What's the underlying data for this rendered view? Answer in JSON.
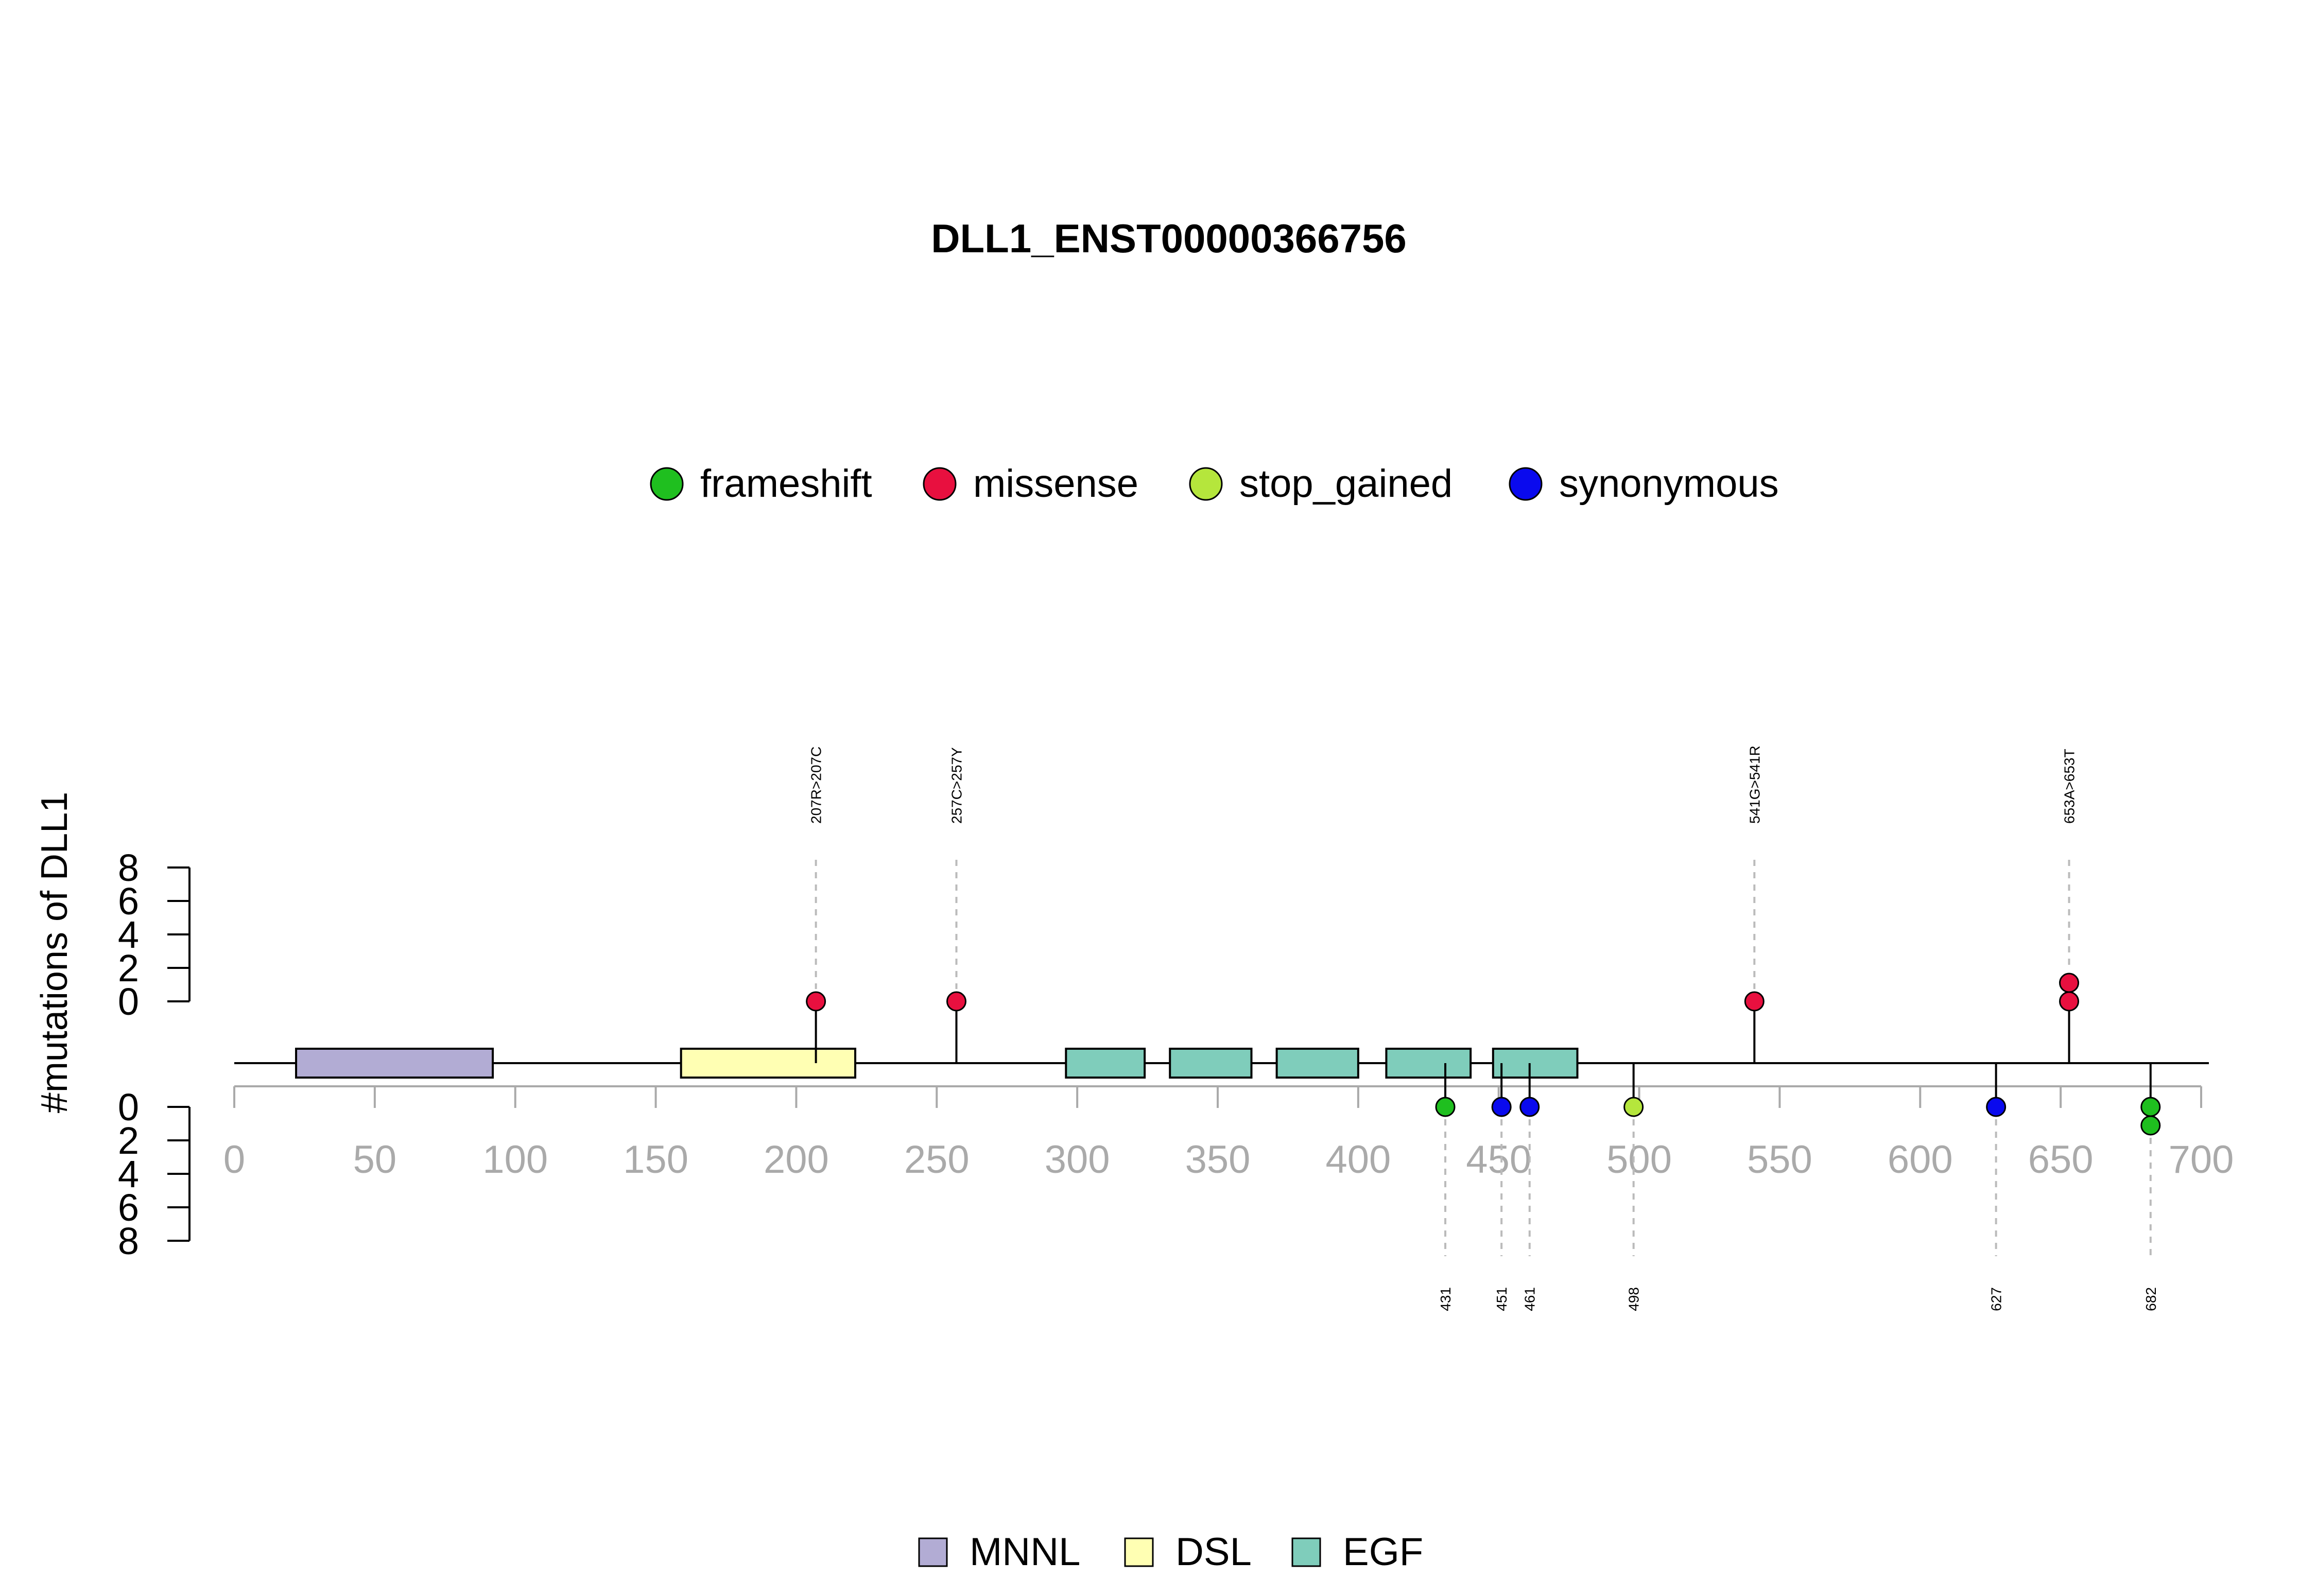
{
  "chart_data": {
    "type": "lollipop",
    "title": "DLL1_ENST00000366756",
    "ylabel": "#mutations of DLL1",
    "xlim": [
      0,
      700
    ],
    "x_ticks": [
      0,
      50,
      100,
      150,
      200,
      250,
      300,
      350,
      400,
      450,
      500,
      550,
      600,
      650,
      700
    ],
    "ylim": [
      0,
      8
    ],
    "y_ticks": [
      0,
      2,
      4,
      6,
      8
    ],
    "mutation_legend": [
      {
        "name": "frameshift",
        "color": "#1fbf1f"
      },
      {
        "name": "missense",
        "color": "#e8103f"
      },
      {
        "name": "stop_gained",
        "color": "#b5e63c"
      },
      {
        "name": "synonymous",
        "color": "#0a0aee"
      }
    ],
    "domains": [
      {
        "name": "MNNL",
        "start": 22,
        "end": 92,
        "color": "#b2acd4"
      },
      {
        "name": "DSL",
        "start": 159,
        "end": 221,
        "color": "#ffffb3"
      },
      {
        "name": "EGF",
        "start": 296,
        "end": 324,
        "color": "#7fcdbb"
      },
      {
        "name": "EGF",
        "start": 333,
        "end": 362,
        "color": "#7fcdbb"
      },
      {
        "name": "EGF",
        "start": 371,
        "end": 400,
        "color": "#7fcdbb"
      },
      {
        "name": "EGF",
        "start": 410,
        "end": 440,
        "color": "#7fcdbb"
      },
      {
        "name": "EGF",
        "start": 448,
        "end": 478,
        "color": "#7fcdbb"
      }
    ],
    "domain_legend": [
      {
        "name": "MNNL",
        "color": "#b2acd4"
      },
      {
        "name": "DSL",
        "color": "#ffffb3"
      },
      {
        "name": "EGF",
        "color": "#7fcdbb"
      }
    ],
    "upper_mutations": [
      {
        "position": 207,
        "label": "207R>207C",
        "count": 1,
        "type": "missense"
      },
      {
        "position": 257,
        "label": "257C>257Y",
        "count": 1,
        "type": "missense"
      },
      {
        "position": 541,
        "label": "541G>541R",
        "count": 1,
        "type": "missense"
      },
      {
        "position": 653,
        "label": "653A>653T",
        "count": 2,
        "type": "missense"
      }
    ],
    "lower_mutations": [
      {
        "position": 431,
        "label": "431",
        "count": 1,
        "type": "frameshift"
      },
      {
        "position": 451,
        "label": "451",
        "count": 1,
        "type": "synonymous"
      },
      {
        "position": 461,
        "label": "461",
        "count": 1,
        "type": "synonymous"
      },
      {
        "position": 498,
        "label": "498",
        "count": 1,
        "type": "stop_gained"
      },
      {
        "position": 627,
        "label": "627",
        "count": 1,
        "type": "synonymous"
      },
      {
        "position": 682,
        "label": "682",
        "count": 2,
        "type": "frameshift"
      }
    ]
  }
}
